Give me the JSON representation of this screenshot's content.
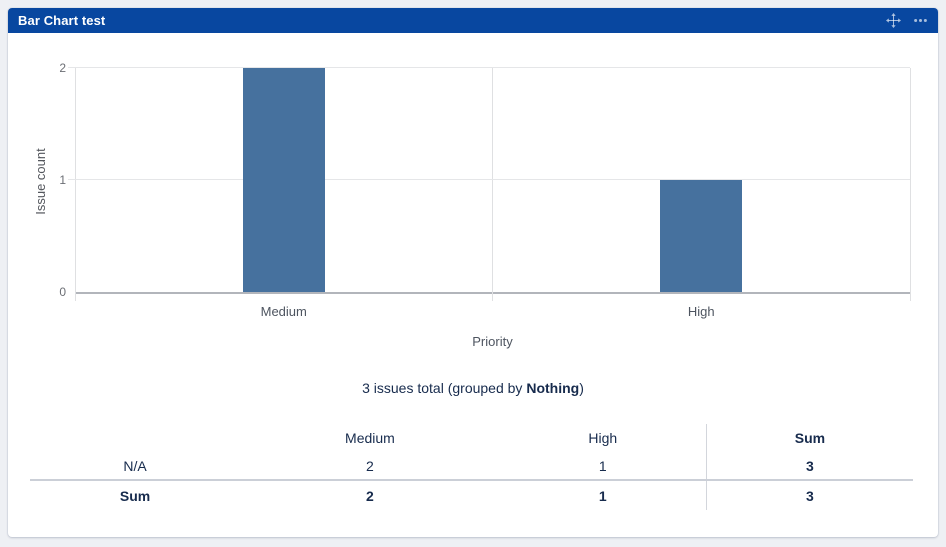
{
  "gadget": {
    "title": "Bar Chart test"
  },
  "chart_data": {
    "type": "bar",
    "categories": [
      "Medium",
      "High"
    ],
    "values": [
      2,
      1
    ],
    "xlabel": "Priority",
    "ylabel": "Issue count",
    "ylim": [
      0,
      2
    ],
    "yticks": [
      0,
      1,
      2
    ],
    "grid": true,
    "legend": false,
    "bar_color": "#46719E"
  },
  "summary": {
    "prefix": "3 issues total (grouped by ",
    "bold": "Nothing",
    "suffix": ")"
  },
  "table": {
    "columns": [
      "",
      "Medium",
      "High",
      "Sum"
    ],
    "rows": [
      {
        "label": "N/A",
        "values": [
          "2",
          "1",
          "3"
        ]
      },
      {
        "label": "Sum",
        "values": [
          "2",
          "1",
          "3"
        ]
      }
    ]
  },
  "colors": {
    "header_bg": "#0847A0",
    "header_icon": "rgba(255,255,255,0.65)",
    "bar": "#46719E",
    "text_navy": "#172B4D",
    "axis_text": "#6b6e74"
  }
}
